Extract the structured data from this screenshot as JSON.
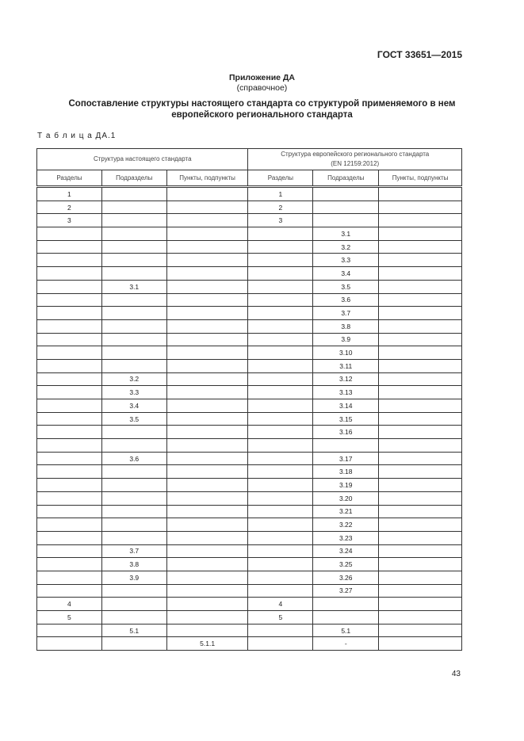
{
  "header": {
    "standard": "ГОСТ 33651—2015"
  },
  "annex": {
    "title": "Приложение ДА",
    "type": "(справочное)"
  },
  "title": "Сопоставление структуры настоящего стандарта со структурой применяемого в нем европейского регионального стандарта",
  "table_caption": "Т а б л и ц а ДА.1",
  "table": {
    "group_left": "Структура настоящего стандарта",
    "group_right_line1": "Структура европейского регионального стандарта",
    "group_right_line2": "(EN 12159:2012)",
    "columns": [
      "Разделы",
      "Подразделы",
      "Пункты, подпункты",
      "Разделы",
      "Подразделы",
      "Пункты, подпункты"
    ],
    "rows": [
      [
        "1",
        "",
        "",
        "1",
        "",
        ""
      ],
      [
        "2",
        "",
        "",
        "2",
        "",
        ""
      ],
      [
        "3",
        "",
        "",
        "3",
        "",
        ""
      ],
      [
        "",
        "",
        "",
        "",
        "3.1",
        ""
      ],
      [
        "",
        "",
        "",
        "",
        "3.2",
        ""
      ],
      [
        "",
        "",
        "",
        "",
        "3.3",
        ""
      ],
      [
        "",
        "",
        "",
        "",
        "3.4",
        ""
      ],
      [
        "",
        "3.1",
        "",
        "",
        "3.5",
        ""
      ],
      [
        "",
        "",
        "",
        "",
        "3.6",
        ""
      ],
      [
        "",
        "",
        "",
        "",
        "3.7",
        ""
      ],
      [
        "",
        "",
        "",
        "",
        "3.8",
        ""
      ],
      [
        "",
        "",
        "",
        "",
        "3.9",
        ""
      ],
      [
        "",
        "",
        "",
        "",
        "3.10",
        ""
      ],
      [
        "",
        "",
        "",
        "",
        "3.11",
        ""
      ],
      [
        "",
        "3.2",
        "",
        "",
        "3.12",
        ""
      ],
      [
        "",
        "3.3",
        "",
        "",
        "3.13",
        ""
      ],
      [
        "",
        "3.4",
        "",
        "",
        "3.14",
        ""
      ],
      [
        "",
        "3.5",
        "",
        "",
        "3.15",
        ""
      ],
      [
        "",
        "",
        "",
        "",
        "3.16",
        ""
      ],
      [
        "",
        "",
        "",
        "",
        "",
        ""
      ],
      [
        "",
        "3.6",
        "",
        "",
        "3.17",
        ""
      ],
      [
        "",
        "",
        "",
        "",
        "3.18",
        ""
      ],
      [
        "",
        "",
        "",
        "",
        "3.19",
        ""
      ],
      [
        "",
        "",
        "",
        "",
        "3.20",
        ""
      ],
      [
        "",
        "",
        "",
        "",
        "3.21",
        ""
      ],
      [
        "",
        "",
        "",
        "",
        "3.22",
        ""
      ],
      [
        "",
        "",
        "",
        "",
        "3.23",
        ""
      ],
      [
        "",
        "3.7",
        "",
        "",
        "3.24",
        ""
      ],
      [
        "",
        "3.8",
        "",
        "",
        "3.25",
        ""
      ],
      [
        "",
        "3.9",
        "",
        "",
        "3.26",
        ""
      ],
      [
        "",
        "",
        "",
        "",
        "3.27",
        ""
      ],
      [
        "4",
        "",
        "",
        "4",
        "",
        ""
      ],
      [
        "5",
        "",
        "",
        "5",
        "",
        ""
      ],
      [
        "",
        "5.1",
        "",
        "",
        "5.1",
        ""
      ],
      [
        "",
        "",
        "5.1.1",
        "",
        "-",
        ""
      ]
    ]
  },
  "page_number": "43"
}
